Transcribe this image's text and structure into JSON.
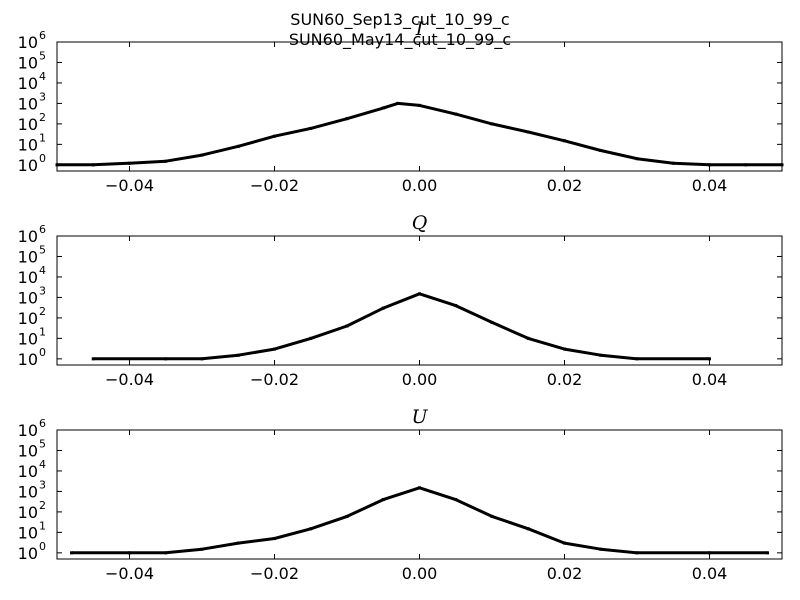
{
  "figure": {
    "title_line1": "SUN60_Sep13_cut_10_99_c",
    "title_line2": "SUN60_May14_cut_10_99_c"
  },
  "chart_data": [
    {
      "type": "line",
      "panel_label": "I",
      "xlim": [
        -0.05,
        0.05
      ],
      "ylim": [
        0.5,
        1000000
      ],
      "yscale": "log",
      "x_ticks": [
        -0.04,
        -0.02,
        0.0,
        0.02,
        0.04
      ],
      "x_tick_labels": [
        "−0.04",
        "−0.02",
        "0.00",
        "0.02",
        "0.04"
      ],
      "y_ticks": [
        {
          "base": "10",
          "exp": "0",
          "value": 1
        },
        {
          "base": "10",
          "exp": "1",
          "value": 10
        },
        {
          "base": "10",
          "exp": "2",
          "value": 100
        },
        {
          "base": "10",
          "exp": "3",
          "value": 1000
        },
        {
          "base": "10",
          "exp": "4",
          "value": 10000
        },
        {
          "base": "10",
          "exp": "5",
          "value": 100000
        },
        {
          "base": "10",
          "exp": "6",
          "value": 1000000
        }
      ],
      "x": [
        -0.05,
        -0.045,
        -0.04,
        -0.035,
        -0.03,
        -0.025,
        -0.02,
        -0.015,
        -0.01,
        -0.005,
        -0.003,
        0.0,
        0.005,
        0.01,
        0.015,
        0.02,
        0.025,
        0.03,
        0.035,
        0.04,
        0.045,
        0.05
      ],
      "y": [
        1,
        1,
        1.2,
        1.5,
        3,
        8,
        25,
        60,
        180,
        600,
        1000,
        800,
        300,
        100,
        40,
        15,
        5,
        2,
        1.2,
        1,
        1,
        1
      ]
    },
    {
      "type": "line",
      "panel_label": "Q",
      "xlim": [
        -0.05,
        0.05
      ],
      "ylim": [
        0.5,
        1000000
      ],
      "yscale": "log",
      "x_ticks": [
        -0.04,
        -0.02,
        0.0,
        0.02,
        0.04
      ],
      "x_tick_labels": [
        "−0.04",
        "−0.02",
        "0.00",
        "0.02",
        "0.04"
      ],
      "y_ticks": [
        {
          "base": "10",
          "exp": "0",
          "value": 1
        },
        {
          "base": "10",
          "exp": "1",
          "value": 10
        },
        {
          "base": "10",
          "exp": "2",
          "value": 100
        },
        {
          "base": "10",
          "exp": "3",
          "value": 1000
        },
        {
          "base": "10",
          "exp": "4",
          "value": 10000
        },
        {
          "base": "10",
          "exp": "5",
          "value": 100000
        },
        {
          "base": "10",
          "exp": "6",
          "value": 1000000
        }
      ],
      "x": [
        -0.045,
        -0.035,
        -0.03,
        -0.025,
        -0.02,
        -0.015,
        -0.01,
        -0.005,
        0.0,
        0.005,
        0.01,
        0.015,
        0.02,
        0.025,
        0.03,
        0.04
      ],
      "y": [
        1,
        1,
        1,
        1.5,
        3,
        10,
        40,
        300,
        1500,
        400,
        60,
        10,
        3,
        1.5,
        1,
        1
      ]
    },
    {
      "type": "line",
      "panel_label": "U",
      "xlim": [
        -0.05,
        0.05
      ],
      "ylim": [
        0.5,
        1000000
      ],
      "yscale": "log",
      "x_ticks": [
        -0.04,
        -0.02,
        0.0,
        0.02,
        0.04
      ],
      "x_tick_labels": [
        "−0.04",
        "−0.02",
        "0.00",
        "0.02",
        "0.04"
      ],
      "y_ticks": [
        {
          "base": "10",
          "exp": "0",
          "value": 1
        },
        {
          "base": "10",
          "exp": "1",
          "value": 10
        },
        {
          "base": "10",
          "exp": "2",
          "value": 100
        },
        {
          "base": "10",
          "exp": "3",
          "value": 1000
        },
        {
          "base": "10",
          "exp": "4",
          "value": 10000
        },
        {
          "base": "10",
          "exp": "5",
          "value": 100000
        },
        {
          "base": "10",
          "exp": "6",
          "value": 1000000
        }
      ],
      "x": [
        -0.048,
        -0.04,
        -0.035,
        -0.03,
        -0.025,
        -0.02,
        -0.015,
        -0.01,
        -0.005,
        0.0,
        0.005,
        0.01,
        0.015,
        0.02,
        0.025,
        0.03,
        0.04,
        0.048
      ],
      "y": [
        1,
        1,
        1,
        1.5,
        3,
        5,
        15,
        60,
        400,
        1500,
        400,
        60,
        15,
        3,
        1.5,
        1,
        1,
        1
      ]
    }
  ]
}
